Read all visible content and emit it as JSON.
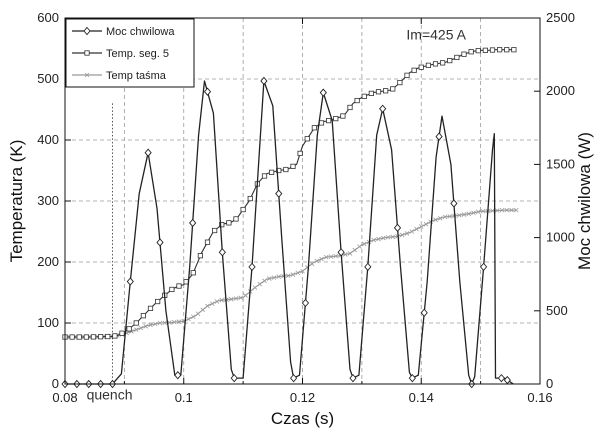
{
  "chart_data": {
    "type": "line",
    "title": "",
    "xlabel": "Czas (s)",
    "ylabel_left": "Temperatura (K)",
    "ylabel_right": "Moc chwilowa (W)",
    "xlim": [
      0.08,
      0.16
    ],
    "ylim_left": [
      0,
      600
    ],
    "ylim_right": [
      0,
      2500
    ],
    "x_ticks": [
      "0.08",
      "0.1",
      "0.12",
      "0.14",
      "0.16"
    ],
    "x_minor_ticks": [
      0.09,
      0.11,
      0.13,
      0.15
    ],
    "y_left_ticks": [
      "0",
      "100",
      "200",
      "300",
      "400",
      "500",
      "600"
    ],
    "y_right_ticks": [
      "0",
      "500",
      "1000",
      "1500",
      "2000",
      "2500"
    ],
    "grid": true,
    "legend": "top-left",
    "annotations": [
      {
        "text": "Im=425 A",
        "x": 0.1375,
        "y": 565
      },
      {
        "text": "quench",
        "x": 0.0875,
        "y": -25
      }
    ],
    "quench_time": 0.088,
    "series": [
      {
        "name": "Moc chwilowa",
        "axis": "right",
        "color": "#222222",
        "marker": "diamond",
        "x": [
          0.08,
          0.084,
          0.088,
          0.0895,
          0.091,
          0.0925,
          0.094,
          0.0955,
          0.097,
          0.0985,
          0.0995,
          0.101,
          0.1025,
          0.1035,
          0.105,
          0.1065,
          0.108,
          0.1085,
          0.11,
          0.1115,
          0.1135,
          0.115,
          0.1165,
          0.118,
          0.1185,
          0.1195,
          0.121,
          0.1225,
          0.1235,
          0.125,
          0.1265,
          0.128,
          0.1285,
          0.1295,
          0.131,
          0.1325,
          0.1335,
          0.135,
          0.1365,
          0.138,
          0.1385,
          0.1395,
          0.141,
          0.1425,
          0.1435,
          0.145,
          0.1465,
          0.148,
          0.1485,
          0.149,
          0.1505,
          0.152,
          0.1523,
          0.1525,
          0.154,
          0.1555
        ],
        "values": [
          0,
          0,
          0,
          70,
          700,
          1300,
          1580,
          1200,
          500,
          60,
          60,
          800,
          1700,
          2070,
          1850,
          900,
          100,
          40,
          40,
          800,
          2070,
          1900,
          1000,
          150,
          40,
          60,
          800,
          1700,
          1990,
          1800,
          900,
          100,
          40,
          60,
          800,
          1700,
          1880,
          1600,
          800,
          80,
          40,
          60,
          700,
          1550,
          1830,
          1500,
          700,
          60,
          0,
          50,
          800,
          1600,
          1710,
          40,
          40,
          0
        ],
        "marker_x": [
          0.08,
          0.082,
          0.084,
          0.086,
          0.088,
          0.091,
          0.094,
          0.096,
          0.099,
          0.1015,
          0.104,
          0.1065,
          0.1085,
          0.1115,
          0.1135,
          0.116,
          0.1185,
          0.1205,
          0.1235,
          0.1265,
          0.1285,
          0.131,
          0.1335,
          0.136,
          0.1385,
          0.1405,
          0.143,
          0.1455,
          0.1485,
          0.1505,
          0.1535,
          0.1545
        ]
      },
      {
        "name": "Temp. seg. 5",
        "axis": "left",
        "color": "#333333",
        "marker": "square",
        "x": [
          0.08,
          0.084,
          0.088,
          0.089,
          0.0905,
          0.092,
          0.0935,
          0.095,
          0.0965,
          0.098,
          0.099,
          0.1,
          0.1015,
          0.103,
          0.105,
          0.1065,
          0.108,
          0.109,
          0.111,
          0.1125,
          0.114,
          0.116,
          0.1175,
          0.119,
          0.12,
          0.122,
          0.1235,
          0.125,
          0.127,
          0.1285,
          0.13,
          0.132,
          0.1335,
          0.135,
          0.1365,
          0.138,
          0.1395,
          0.141,
          0.1425,
          0.144,
          0.1455,
          0.147,
          0.1485,
          0.15,
          0.1515,
          0.1525,
          0.156
        ],
        "values": [
          77,
          77,
          78,
          80,
          88,
          100,
          115,
          130,
          143,
          155,
          160,
          163,
          180,
          215,
          250,
          262,
          265,
          272,
          300,
          330,
          345,
          350,
          352,
          360,
          390,
          420,
          430,
          433,
          440,
          460,
          470,
          478,
          480,
          482,
          495,
          510,
          518,
          522,
          525,
          527,
          533,
          540,
          545,
          547,
          547,
          548,
          548
        ],
        "marker_every": 0.0012
      },
      {
        "name": "Temp taśma",
        "axis": "left",
        "color": "#999999",
        "marker": "x",
        "x": [
          0.08,
          0.084,
          0.088,
          0.09,
          0.092,
          0.094,
          0.096,
          0.098,
          0.1,
          0.102,
          0.104,
          0.106,
          0.108,
          0.11,
          0.112,
          0.114,
          0.116,
          0.118,
          0.12,
          0.122,
          0.124,
          0.126,
          0.128,
          0.13,
          0.132,
          0.134,
          0.136,
          0.138,
          0.14,
          0.142,
          0.144,
          0.146,
          0.148,
          0.15,
          0.152,
          0.154,
          0.156
        ],
        "values": [
          77,
          77,
          78,
          82,
          89,
          96,
          100,
          101,
          103,
          112,
          128,
          137,
          139,
          142,
          158,
          172,
          176,
          178,
          185,
          200,
          208,
          210,
          214,
          228,
          236,
          240,
          242,
          248,
          258,
          268,
          274,
          276,
          279,
          283,
          284,
          285,
          285
        ],
        "marker_every": 0.0008
      }
    ]
  }
}
